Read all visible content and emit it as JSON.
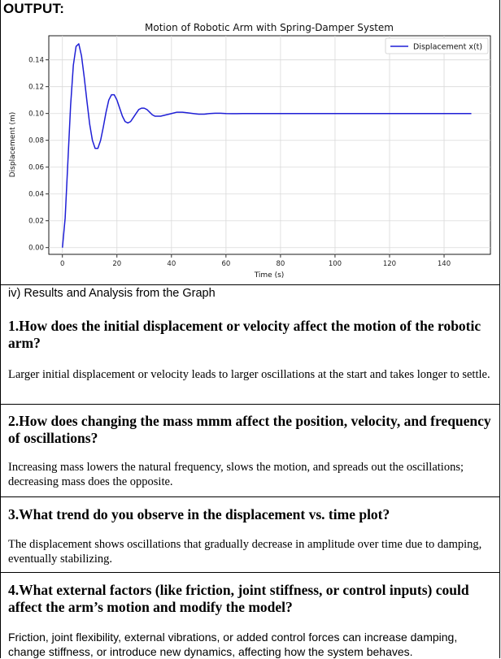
{
  "heading": "OUTPUT:",
  "chart_data": {
    "type": "line",
    "title": "Motion of Robotic Arm with Spring-Damper System",
    "xlabel": "Time (s)",
    "ylabel": "Displacement (m)",
    "xlim": [
      -5,
      157
    ],
    "ylim": [
      -0.005,
      0.158
    ],
    "xticks": [
      0,
      20,
      40,
      60,
      80,
      100,
      120,
      140
    ],
    "yticks": [
      0.0,
      0.02,
      0.04,
      0.06,
      0.08,
      0.1,
      0.12,
      0.14
    ],
    "grid": true,
    "legend_position": "top-right",
    "series_color": "#1f1fd6",
    "series": [
      {
        "name": "Displacement x(t)",
        "x": [
          0,
          1,
          2,
          3,
          4,
          5,
          6,
          7,
          8,
          9,
          10,
          11,
          12,
          13,
          14,
          15,
          16,
          17,
          18,
          19,
          20,
          21,
          22,
          23,
          24,
          25,
          26,
          27,
          28,
          29,
          30,
          31,
          32,
          33,
          34,
          36,
          38,
          40,
          42,
          44,
          46,
          48,
          50,
          52,
          54,
          56,
          58,
          60,
          62,
          64,
          66,
          68,
          70,
          75,
          80,
          90,
          100,
          110,
          120,
          130,
          140,
          150
        ],
        "values": [
          0.0,
          0.022,
          0.064,
          0.106,
          0.136,
          0.15,
          0.152,
          0.143,
          0.127,
          0.109,
          0.092,
          0.08,
          0.074,
          0.074,
          0.08,
          0.09,
          0.101,
          0.11,
          0.114,
          0.114,
          0.11,
          0.104,
          0.098,
          0.094,
          0.093,
          0.094,
          0.097,
          0.1,
          0.103,
          0.104,
          0.104,
          0.103,
          0.101,
          0.099,
          0.098,
          0.098,
          0.099,
          0.1,
          0.101,
          0.101,
          0.1005,
          0.1,
          0.0995,
          0.0995,
          0.1,
          0.1002,
          0.1002,
          0.1,
          0.0999,
          0.0999,
          0.1,
          0.1,
          0.1,
          0.1,
          0.1,
          0.1,
          0.1,
          0.1,
          0.1,
          0.1,
          0.1,
          0.1
        ]
      }
    ]
  },
  "section_title": "iv) Results and Analysis from the Graph",
  "qa": [
    {
      "question": "1.How does the initial displacement or velocity affect the motion of the robotic arm?",
      "answer": "Larger initial displacement or velocity leads to larger oscillations at the start and takes longer to settle."
    },
    {
      "question": "2.How does changing the mass mmm affect the position, velocity, and frequency of oscillations?",
      "answer": "Increasing mass lowers the natural frequency, slows the motion, and spreads out the oscillations; decreasing mass does the opposite."
    },
    {
      "question": "3.What trend do you observe in the displacement vs. time plot?",
      "answer": "The displacement shows oscillations that gradually decrease in amplitude over time due to damping, eventually stabilizing."
    },
    {
      "question": "4.What external factors (like friction, joint stiffness, or control inputs) could affect the arm’s motion and modify the model?",
      "answer": "Friction, joint flexibility, external vibrations, or added control forces can increase damping, change stiffness, or introduce new dynamics, affecting how the system behaves."
    }
  ]
}
